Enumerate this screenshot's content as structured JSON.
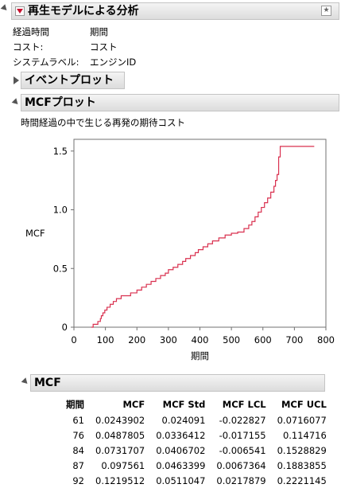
{
  "report": {
    "title": "再生モデルによる分析",
    "info": [
      {
        "label": "経過時間",
        "value": "期間"
      },
      {
        "label": "コスト:",
        "value": "コスト"
      },
      {
        "label": "システムラベル:",
        "value": "エンジンID"
      }
    ]
  },
  "event_plot": {
    "title": "イベントプロット"
  },
  "mcf_plot": {
    "title": "MCFプロット",
    "subtitle": "時間経過の中で生じる再発の期待コスト"
  },
  "mcf_table": {
    "title": "MCF",
    "headers": [
      "期間",
      "MCF",
      "MCF Std",
      "MCF LCL",
      "MCF UCL"
    ],
    "rows": [
      [
        "61",
        "0.0243902",
        "0.024091",
        "-0.022827",
        "0.0716077"
      ],
      [
        "76",
        "0.0487805",
        "0.0336412",
        "-0.017155",
        "0.114716"
      ],
      [
        "84",
        "0.0731707",
        "0.0406702",
        "-0.006541",
        "0.1528829"
      ],
      [
        "87",
        "0.097561",
        "0.0463399",
        "0.0067364",
        "0.1883855"
      ],
      [
        "92",
        "0.1219512",
        "0.0511047",
        "0.0217879",
        "0.2221145"
      ]
    ]
  },
  "colors": {
    "line": "#d9304f",
    "axis": "#707070",
    "header_bg": "#e6e6e6"
  },
  "chart_data": {
    "type": "line",
    "step": true,
    "title": "",
    "xlabel": "期間",
    "ylabel": "MCF",
    "xlim": [
      0,
      800
    ],
    "ylim": [
      0,
      1.6
    ],
    "xticks": [
      0,
      100,
      200,
      300,
      400,
      500,
      600,
      700,
      800
    ],
    "yticks": [
      0,
      0.5,
      1.0,
      1.5
    ],
    "ytick_labels": [
      "0",
      "0.5",
      "1.0",
      "1.5"
    ],
    "grid": false,
    "series": [
      {
        "x": [
          55,
          61,
          76,
          84,
          87,
          92,
          98,
          105,
          115,
          125,
          135,
          150,
          165,
          180,
          200,
          215,
          230,
          245,
          260,
          275,
          290,
          300,
          315,
          330,
          345,
          355,
          370,
          385,
          395,
          410,
          425,
          440,
          460,
          480,
          500,
          520,
          540,
          555,
          565,
          575,
          585,
          595,
          605,
          615,
          625,
          635,
          640,
          645,
          650,
          655,
          763
        ],
        "y": [
          0,
          0.0244,
          0.0488,
          0.0732,
          0.0976,
          0.122,
          0.146,
          0.17,
          0.195,
          0.219,
          0.243,
          0.268,
          0.268,
          0.292,
          0.316,
          0.341,
          0.365,
          0.39,
          0.415,
          0.44,
          0.46,
          0.49,
          0.51,
          0.535,
          0.56,
          0.585,
          0.61,
          0.635,
          0.66,
          0.685,
          0.71,
          0.735,
          0.76,
          0.785,
          0.8,
          0.81,
          0.84,
          0.87,
          0.9,
          0.94,
          0.98,
          1.02,
          1.06,
          1.1,
          1.15,
          1.2,
          1.25,
          1.3,
          1.45,
          1.54,
          1.54
        ]
      }
    ]
  }
}
